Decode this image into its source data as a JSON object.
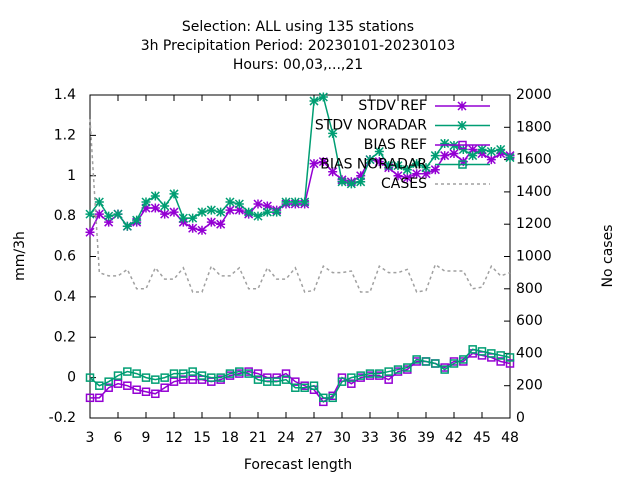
{
  "chart_data": {
    "type": "line",
    "title": [
      "Selection: ALL using   135 stations",
      "3h Precipitation   Period: 20230101-20230103",
      "Hours:  00,03,...,21"
    ],
    "xlabel": "Forecast length",
    "ylabel": "mm/3h",
    "y2label": "No cases",
    "x": [
      3,
      4,
      5,
      6,
      7,
      8,
      9,
      10,
      11,
      12,
      13,
      14,
      15,
      16,
      17,
      18,
      19,
      20,
      21,
      22,
      23,
      24,
      25,
      26,
      27,
      28,
      29,
      30,
      31,
      32,
      33,
      34,
      35,
      36,
      37,
      38,
      39,
      40,
      41,
      42,
      43,
      44,
      45,
      46,
      47,
      48
    ],
    "xlim": [
      3,
      48
    ],
    "xticks": [
      3,
      6,
      9,
      12,
      15,
      18,
      21,
      24,
      27,
      30,
      33,
      36,
      39,
      42,
      45,
      48
    ],
    "ylim": [
      -0.2,
      1.4
    ],
    "yticks": [
      -0.2,
      0,
      0.2,
      0.4,
      0.6,
      0.8,
      1,
      1.2,
      1.4
    ],
    "y2lim": [
      0,
      2000
    ],
    "y2ticks": [
      0,
      200,
      400,
      600,
      800,
      1000,
      1200,
      1400,
      1600,
      1800,
      2000
    ],
    "grid": false,
    "legend": "top-right",
    "series": [
      {
        "name": "STDV REF",
        "color": "#9400d3",
        "marker": "star",
        "values": [
          0.72,
          0.81,
          0.77,
          0.81,
          0.75,
          0.77,
          0.84,
          0.84,
          0.81,
          0.82,
          0.77,
          0.74,
          0.73,
          0.77,
          0.76,
          0.83,
          0.83,
          0.81,
          0.86,
          0.85,
          0.83,
          0.86,
          0.86,
          0.86,
          1.06,
          1.07,
          1.02,
          0.98,
          0.97,
          1.0,
          1.08,
          1.07,
          1.04,
          1.0,
          0.99,
          1.01,
          1.01,
          1.03,
          1.1,
          1.11,
          1.07,
          1.13,
          1.11,
          1.08,
          1.11,
          1.1
        ]
      },
      {
        "name": "STDV NORADAR",
        "color": "#009e73",
        "marker": "star",
        "values": [
          0.81,
          0.87,
          0.8,
          0.81,
          0.75,
          0.78,
          0.87,
          0.9,
          0.85,
          0.91,
          0.79,
          0.79,
          0.82,
          0.83,
          0.82,
          0.87,
          0.86,
          0.82,
          0.8,
          0.82,
          0.82,
          0.87,
          0.87,
          0.87,
          1.37,
          1.39,
          1.21,
          0.97,
          0.96,
          0.97,
          1.08,
          1.12,
          1.05,
          1.05,
          1.03,
          1.06,
          1.04,
          1.1,
          1.16,
          1.15,
          1.13,
          1.1,
          1.13,
          1.12,
          1.13,
          1.09
        ]
      },
      {
        "name": "BIAS REF",
        "color": "#9400d3",
        "marker": "square",
        "values": [
          -0.1,
          -0.1,
          -0.05,
          -0.03,
          -0.04,
          -0.06,
          -0.07,
          -0.08,
          -0.05,
          -0.02,
          -0.01,
          -0.01,
          -0.01,
          -0.02,
          -0.01,
          0.01,
          0.02,
          0.03,
          0.02,
          0.0,
          0.0,
          0.02,
          -0.02,
          -0.04,
          -0.06,
          -0.12,
          -0.09,
          0.0,
          -0.03,
          0.0,
          0.01,
          0.01,
          -0.01,
          0.03,
          0.04,
          0.08,
          0.08,
          0.07,
          0.05,
          0.08,
          0.08,
          0.12,
          0.11,
          0.1,
          0.08,
          0.07
        ]
      },
      {
        "name": "BIAS NORADAR",
        "color": "#009e73",
        "marker": "square",
        "values": [
          0.0,
          -0.04,
          -0.02,
          0.01,
          0.03,
          0.02,
          0.0,
          -0.01,
          0.0,
          0.02,
          0.02,
          0.03,
          0.01,
          0.0,
          0.0,
          0.02,
          0.03,
          0.02,
          -0.01,
          -0.02,
          -0.02,
          -0.01,
          -0.05,
          -0.05,
          -0.04,
          -0.1,
          -0.1,
          -0.02,
          0.0,
          0.01,
          0.02,
          0.02,
          0.03,
          0.04,
          0.05,
          0.09,
          0.08,
          0.07,
          0.04,
          0.07,
          0.09,
          0.14,
          0.13,
          0.12,
          0.11,
          0.1
        ]
      },
      {
        "name": "CASES",
        "color": "#a0a0a0",
        "marker": "none",
        "dashed": true,
        "axis": "y2",
        "values": [
          1850,
          900,
          880,
          880,
          920,
          800,
          800,
          930,
          860,
          860,
          930,
          780,
          780,
          940,
          880,
          880,
          930,
          800,
          800,
          930,
          860,
          860,
          930,
          780,
          790,
          940,
          900,
          900,
          910,
          780,
          780,
          940,
          900,
          900,
          920,
          780,
          790,
          950,
          910,
          910,
          910,
          800,
          810,
          940,
          880,
          900
        ]
      }
    ]
  }
}
